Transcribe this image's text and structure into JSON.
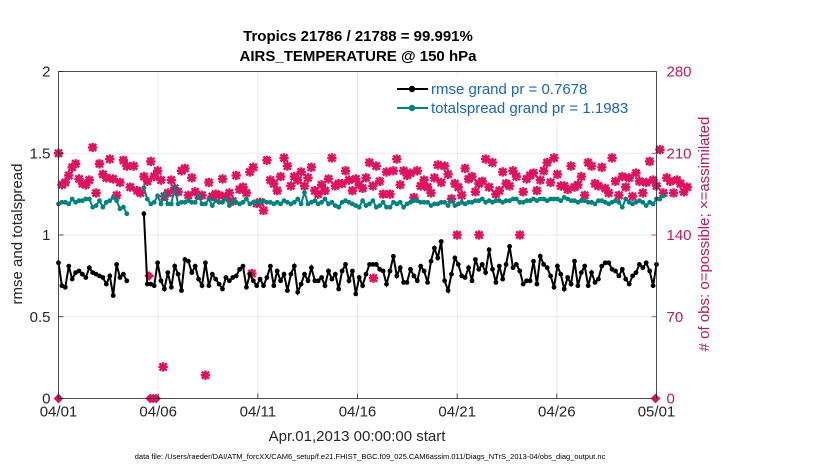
{
  "chart_data": {
    "type": "line",
    "title_line1": "Tropics 21786 / 21788 = 99.991%",
    "title_line2": "AIRS_TEMPERATURE @ 150 hPa",
    "xlabel": "Apr.01,2013 00:00:00 start",
    "ylabel_left": "rmse and totalspread",
    "ylabel_right": "# of obs: o=possible; ×=assimilated",
    "footer": "data file: /Users/raeder/DAI/ATM_forcXX/CAM6_setup/f.e21.FHIST_BGC.f09_025.CAM6assim.011/Diags_NTrS_2013-04/obs_diag_output.nc",
    "x_ticks": [
      "04/01",
      "04/06",
      "04/11",
      "04/16",
      "04/21",
      "04/26",
      "05/01"
    ],
    "x_range_days": [
      0,
      30
    ],
    "y_left_ticks": [
      "0",
      "0.5",
      "1",
      "1.5",
      "2"
    ],
    "y_left_range": [
      0,
      2
    ],
    "y_right_ticks": [
      "0",
      "70",
      "140",
      "210",
      "280"
    ],
    "y_right_range": [
      0,
      280
    ],
    "legend": [
      "rmse grand pr = 0.7678",
      "totalspread grand pr = 1.1983"
    ],
    "colors": {
      "rmse": "#000000",
      "spread": "#00827f",
      "obs": "#e0115f",
      "right_axis": "#c2185b",
      "legend_text": "#1565c0"
    },
    "series": [
      {
        "name": "rmse",
        "values": [
          0.83,
          0.69,
          0.68,
          0.81,
          0.73,
          0.77,
          0.78,
          0.76,
          0.74,
          0.8,
          0.77,
          0.76,
          0.75,
          0.74,
          0.7,
          0.75,
          0.63,
          0.82,
          0.74,
          0.76,
          0.72,
          null,
          null,
          null,
          null,
          1.13,
          0.7,
          0.7,
          0.69,
          0.83,
          0.72,
          0.67,
          0.77,
          0.68,
          0.81,
          0.76,
          0.66,
          0.85,
          0.84,
          0.77,
          0.81,
          0.73,
          0.69,
          0.83,
          0.69,
          0.76,
          0.73,
          0.7,
          0.67,
          0.74,
          0.72,
          0.74,
          0.75,
          0.79,
          0.81,
          0.68,
          0.76,
          0.72,
          0.69,
          0.73,
          0.69,
          0.74,
          0.81,
          0.69,
          0.78,
          0.72,
          0.76,
          0.66,
          0.76,
          0.81,
          0.65,
          0.7,
          0.76,
          0.72,
          0.8,
          0.72,
          0.72,
          0.74,
          0.69,
          0.78,
          0.73,
          0.76,
          0.67,
          0.78,
          0.82,
          0.72,
          0.78,
          0.64,
          0.74,
          0.69,
          0.76,
          0.82,
          0.82,
          0.82,
          0.79,
          0.78,
          0.7,
          0.78,
          0.87,
          0.75,
          0.8,
          0.71,
          0.71,
          0.79,
          0.75,
          0.72,
          0.81,
          0.78,
          0.71,
          0.84,
          0.92,
          0.86,
          0.96,
          0.72,
          0.66,
          0.76,
          0.86,
          0.82,
          0.75,
          0.74,
          0.8,
          0.72,
          0.85,
          0.79,
          0.82,
          0.77,
          0.91,
          0.79,
          0.71,
          0.81,
          0.73,
          0.82,
          0.93,
          0.8,
          0.82,
          0.78,
          0.7,
          0.72,
          0.72,
          0.84,
          0.7,
          0.87,
          0.82,
          0.8,
          0.75,
          0.68,
          0.81,
          0.76,
          0.67,
          0.74,
          0.7,
          0.84,
          0.69,
          0.77,
          0.81,
          0.69,
          0.77,
          0.71,
          0.73,
          0.81,
          0.83,
          0.83,
          0.79,
          0.78,
          0.75,
          0.79,
          0.73,
          0.7,
          0.75,
          0.77,
          0.82,
          0.8,
          0.83,
          0.78,
          0.69,
          0.82
        ]
      },
      {
        "name": "totalspread",
        "values": [
          1.19,
          1.2,
          1.2,
          1.19,
          1.22,
          1.2,
          1.21,
          1.21,
          1.22,
          1.22,
          1.17,
          1.18,
          1.21,
          1.17,
          1.2,
          1.21,
          1.23,
          1.21,
          1.16,
          1.17,
          1.13,
          null,
          null,
          null,
          null,
          1.29,
          1.22,
          1.19,
          1.2,
          1.24,
          1.19,
          1.25,
          1.19,
          1.19,
          1.29,
          1.19,
          1.2,
          1.2,
          1.21,
          1.2,
          1.2,
          1.24,
          1.19,
          1.19,
          1.22,
          1.18,
          1.21,
          1.2,
          1.2,
          1.22,
          1.18,
          1.21,
          1.2,
          1.19,
          1.2,
          1.22,
          1.19,
          1.2,
          1.2,
          1.2,
          1.21,
          1.2,
          1.2,
          1.19,
          1.2,
          1.19,
          1.21,
          1.2,
          1.19,
          1.2,
          1.22,
          1.19,
          1.26,
          1.19,
          1.2,
          1.21,
          1.19,
          1.2,
          1.22,
          1.19,
          1.2,
          1.18,
          1.17,
          1.2,
          1.21,
          1.2,
          1.19,
          1.18,
          1.17,
          1.21,
          1.18,
          1.19,
          1.21,
          1.17,
          1.18,
          1.2,
          1.17,
          1.17,
          1.2,
          1.19,
          1.2,
          1.17,
          1.19,
          1.2,
          1.21,
          1.21,
          1.2,
          1.2,
          1.2,
          1.18,
          1.19,
          1.19,
          1.2,
          1.2,
          1.18,
          1.21,
          1.18,
          1.19,
          1.2,
          1.19,
          1.2,
          1.2,
          1.21,
          1.21,
          1.22,
          1.2,
          1.21,
          1.2,
          1.21,
          1.21,
          1.2,
          1.21,
          1.21,
          1.22,
          1.22,
          1.2,
          1.2,
          1.21,
          1.21,
          1.22,
          1.21,
          1.22,
          1.22,
          1.21,
          1.22,
          1.22,
          1.22,
          1.21,
          1.23,
          1.22,
          1.21,
          1.21,
          1.2,
          1.21,
          1.21,
          1.2,
          1.2,
          1.19,
          1.21,
          1.21,
          1.2,
          1.19,
          1.2,
          1.21,
          1.2,
          1.17,
          1.22,
          1.2,
          1.19,
          1.2,
          1.21,
          1.2,
          1.18,
          1.2,
          1.19,
          1.22,
          1.22,
          1.24
        ]
      },
      {
        "name": "obs_assimilated",
        "values": [
          210,
          183,
          185,
          191,
          198,
          201,
          188,
          184,
          183,
          187,
          215,
          176,
          201,
          192,
          189,
          205,
          188,
          174,
          185,
          204,
          199,
          181,
          199,
          178,
          176,
          190,
          186,
          203,
          190,
          195,
          187,
          173,
          176,
          187,
          180,
          177,
          195,
          197,
          174,
          189,
          177,
          174,
          174,
          20,
          185,
          173,
          175,
          174,
          188,
          173,
          176,
          169,
          191,
          179,
          181,
          176,
          194,
          198,
          167,
          168,
          161,
          204,
          187,
          184,
          178,
          190,
          206,
          199,
          182,
          190,
          187,
          194,
          182,
          189,
          198,
          178,
          175,
          183,
          178,
          188,
          206,
          182,
          184,
          184,
          195,
          187,
          178,
          188,
          183,
          180,
          189,
          202,
          182,
          199,
          186,
          175,
          194,
          175,
          195,
          205,
          183,
          195,
          191,
          193,
          172,
          195,
          182,
          187,
          181,
          176,
          189,
          200,
          185,
          199,
          192,
          171,
          184,
          181,
          174,
          197,
          188,
          190,
          177,
          184,
          186,
          205,
          181,
          202,
          175,
          178,
          194,
          184,
          182,
          195,
          190,
          140,
          177,
          188,
          191,
          193,
          178,
          187,
          195,
          202,
          185,
          206,
          192,
          182,
          182,
          179,
          199,
          181,
          183,
          190,
          174,
          202,
          199,
          184,
          182,
          198,
          180,
          176,
          206,
          186,
          174,
          190,
          181,
          189,
          173,
          193,
          186,
          176,
          185,
          203,
          187,
          182,
          213,
          176,
          189,
          186,
          176,
          187,
          184,
          177,
          181
        ]
      },
      {
        "name": "obs_possible_outliers",
        "values": [
          0,
          0,
          0,
          0,
          0,
          0,
          0,
          0,
          0,
          0,
          0,
          0,
          0,
          0,
          0,
          0,
          0,
          0,
          0,
          0,
          0,
          0,
          0,
          0,
          0,
          0,
          0,
          0,
          0,
          0,
          0,
          0,
          0,
          0,
          0,
          0,
          0,
          0,
          0,
          0,
          0,
          0,
          0,
          0,
          0,
          0,
          0,
          0,
          0,
          0,
          0,
          0,
          0,
          0,
          0,
          0,
          0,
          0,
          0,
          0,
          0,
          0,
          0,
          0,
          0,
          0,
          0,
          0,
          0,
          0,
          0,
          0,
          0,
          0,
          0,
          0,
          0,
          0,
          0,
          0,
          0,
          0,
          0,
          0,
          0,
          0,
          0,
          0,
          0,
          0,
          0,
          0,
          0,
          0,
          0,
          0,
          0,
          0,
          0,
          0,
          0,
          0,
          0,
          0,
          0,
          0,
          0,
          0,
          0,
          0,
          0,
          0,
          0,
          0,
          0,
          0,
          0,
          0,
          0,
          0,
          0,
          0,
          0,
          0,
          0,
          0,
          0,
          0,
          0,
          0,
          0,
          0,
          0,
          0,
          0,
          0,
          0,
          0,
          0,
          0,
          0,
          0,
          0,
          0,
          0,
          0,
          0,
          0,
          0,
          0,
          0,
          0,
          0,
          0,
          0,
          0,
          0,
          0,
          0,
          0,
          0,
          0,
          0,
          0,
          0,
          0,
          0,
          0,
          0,
          0,
          0,
          0,
          0,
          0,
          0,
          0,
          0,
          0,
          0,
          0,
          0
        ]
      }
    ],
    "obs_points": [
      {
        "day": 0.0,
        "count": 0,
        "style": "diamond"
      },
      {
        "day": 4.6,
        "count": 0,
        "style": "diamond"
      },
      {
        "day": 4.75,
        "count": 0,
        "style": "diamond"
      },
      {
        "day": 4.9,
        "count": 0,
        "style": "diamond"
      },
      {
        "day": 4.55,
        "count": 105,
        "style": "diamond"
      },
      {
        "day": 5.25,
        "count": 27,
        "style": "cross"
      },
      {
        "day": 29.95,
        "count": 0,
        "style": "diamond"
      },
      {
        "day": 9.7,
        "count": 107,
        "style": "cross"
      },
      {
        "day": 15.8,
        "count": 103,
        "style": "cross"
      },
      {
        "day": 20.0,
        "count": 140,
        "style": "cross"
      },
      {
        "day": 21.1,
        "count": 140,
        "style": "cross"
      }
    ]
  }
}
